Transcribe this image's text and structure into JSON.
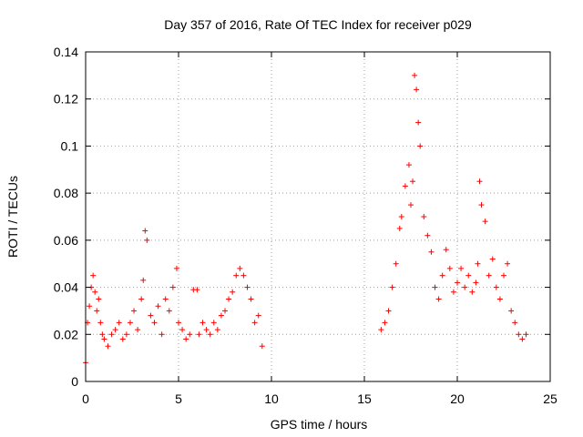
{
  "chart_data": {
    "type": "scatter",
    "title": "Day 357 of 2016, Rate Of TEC Index for receiver p029",
    "xlabel": "GPS time / hours",
    "ylabel": "ROTI / TECUs",
    "xlim": [
      0,
      25
    ],
    "ylim": [
      0,
      0.14
    ],
    "x_ticks": [
      "0",
      "5",
      "10",
      "15",
      "20",
      "25"
    ],
    "y_ticks": [
      "0",
      "0.02",
      "0.04",
      "0.06",
      "0.08",
      "0.1",
      "0.12",
      "0.14"
    ],
    "grid": true,
    "marker": "plus",
    "marker_color": "#ff0000",
    "series": [
      {
        "x": [
          0.0,
          0.1,
          0.2,
          0.3,
          0.4,
          0.5,
          0.6,
          0.7,
          0.8,
          0.9,
          1.0,
          1.2,
          1.4,
          1.6,
          1.8,
          2.0,
          2.2,
          2.4,
          2.6,
          2.8,
          3.0,
          3.1,
          3.2,
          3.3,
          3.5,
          3.7,
          3.9,
          4.1,
          4.3,
          4.5,
          4.7,
          4.9,
          5.0,
          5.2,
          5.4,
          5.6,
          5.8,
          6.0,
          6.1,
          6.3,
          6.5,
          6.7,
          6.9,
          7.1,
          7.3,
          7.5,
          7.7,
          7.9,
          8.1,
          8.3,
          8.5,
          8.7,
          8.9,
          9.1,
          9.3,
          9.5,
          15.9,
          16.1,
          16.3,
          16.5,
          16.7,
          16.9,
          17.0,
          17.2,
          17.4,
          17.5,
          17.6,
          17.7,
          17.8,
          17.9,
          18.0,
          18.2,
          18.4,
          18.6,
          18.8,
          19.0,
          19.2,
          19.4,
          19.6,
          19.8,
          20.0,
          20.2,
          20.4,
          20.6,
          20.8,
          21.0,
          21.1,
          21.2,
          21.3,
          21.5,
          21.7,
          21.9,
          22.1,
          22.3,
          22.5,
          22.7,
          22.9,
          23.1,
          23.3,
          23.5,
          23.7
        ],
        "y": [
          0.008,
          0.025,
          0.032,
          0.04,
          0.045,
          0.038,
          0.03,
          0.035,
          0.025,
          0.02,
          0.018,
          0.015,
          0.02,
          0.022,
          0.025,
          0.018,
          0.02,
          0.025,
          0.03,
          0.022,
          0.035,
          0.043,
          0.064,
          0.06,
          0.028,
          0.025,
          0.032,
          0.02,
          0.035,
          0.03,
          0.04,
          0.048,
          0.025,
          0.022,
          0.018,
          0.02,
          0.039,
          0.039,
          0.02,
          0.025,
          0.022,
          0.02,
          0.025,
          0.022,
          0.028,
          0.03,
          0.035,
          0.038,
          0.045,
          0.048,
          0.045,
          0.04,
          0.035,
          0.025,
          0.028,
          0.015,
          0.022,
          0.025,
          0.03,
          0.04,
          0.05,
          0.065,
          0.07,
          0.083,
          0.092,
          0.075,
          0.085,
          0.13,
          0.124,
          0.11,
          0.1,
          0.07,
          0.062,
          0.055,
          0.04,
          0.035,
          0.045,
          0.056,
          0.048,
          0.038,
          0.042,
          0.048,
          0.04,
          0.045,
          0.038,
          0.042,
          0.05,
          0.085,
          0.075,
          0.068,
          0.045,
          0.052,
          0.04,
          0.035,
          0.045,
          0.05,
          0.03,
          0.025,
          0.02,
          0.018,
          0.02
        ]
      }
    ]
  }
}
